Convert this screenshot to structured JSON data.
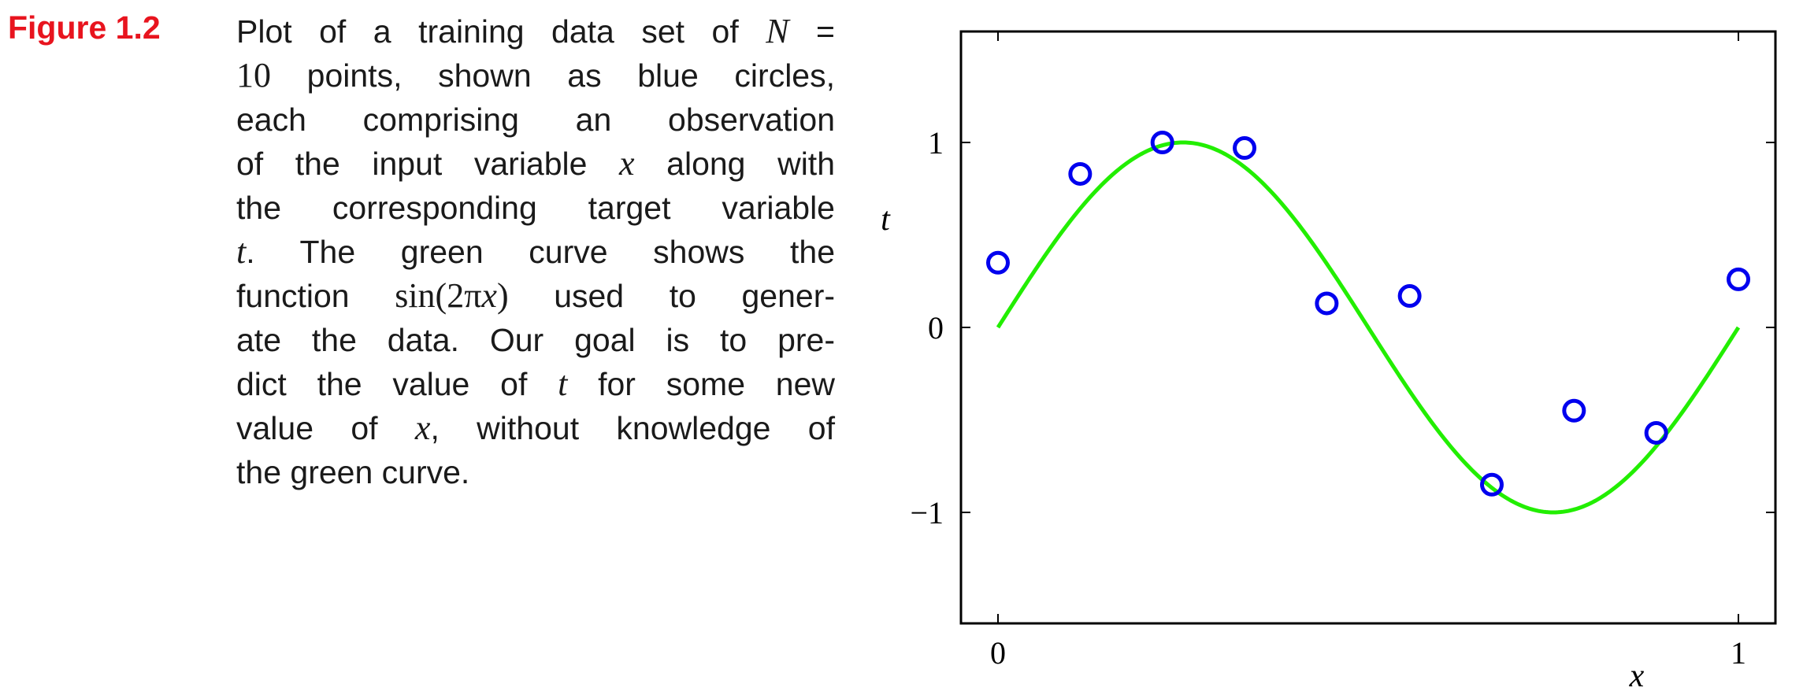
{
  "figure_label": "Figure 1.2",
  "caption": {
    "lines": [
      [
        {
          "t": "Plot of a training data set of "
        },
        {
          "t": "N",
          "m": 1
        },
        {
          "t": " ="
        }
      ],
      [
        {
          "t": "10",
          "r": 1
        },
        {
          "t": " points, shown as blue circles,"
        }
      ],
      [
        {
          "t": "each comprising an observation"
        }
      ],
      [
        {
          "t": "of the input variable "
        },
        {
          "t": "x",
          "m": 1
        },
        {
          "t": " along with"
        }
      ],
      [
        {
          "t": "the corresponding target variable"
        }
      ],
      [
        {
          "t": "t",
          "m": 1
        },
        {
          "t": ".  The green curve shows the"
        }
      ],
      [
        {
          "t": "function "
        },
        {
          "t": "sin(2π",
          "r": 1
        },
        {
          "t": "x",
          "m": 1
        },
        {
          "t": ")",
          "r": 1
        },
        {
          "t": " used to gener-"
        }
      ],
      [
        {
          "t": "ate the data.  Our goal is to pre-"
        }
      ],
      [
        {
          "t": "dict the value of "
        },
        {
          "t": "t",
          "m": 1
        },
        {
          "t": " for some new"
        }
      ],
      [
        {
          "t": "value of "
        },
        {
          "t": "x",
          "m": 1
        },
        {
          "t": ", without knowledge of"
        }
      ],
      [
        {
          "t": "the green curve."
        }
      ]
    ]
  },
  "chart_data": {
    "type": "scatter",
    "xlabel": "x",
    "ylabel": "t",
    "xlim": [
      -0.05,
      1.05
    ],
    "ylim": [
      -1.6,
      1.6
    ],
    "xticks": [
      0,
      1
    ],
    "xtick_labels": [
      "0",
      "1"
    ],
    "yticks": [
      -1,
      0,
      1
    ],
    "ytick_labels": [
      "−1",
      "0",
      "1"
    ],
    "grid": false,
    "series": [
      {
        "kind": "points",
        "marker": "open-circle",
        "color": "#0000ee",
        "x": [
          0.0,
          0.111,
          0.222,
          0.333,
          0.444,
          0.556,
          0.667,
          0.778,
          0.889,
          1.0
        ],
        "y": [
          0.35,
          0.83,
          1.0,
          0.97,
          0.13,
          0.17,
          -0.85,
          -0.45,
          -0.57,
          0.26
        ]
      },
      {
        "kind": "function",
        "function": "sin(2πx)",
        "color": "#22ee00",
        "x_range": [
          0,
          1
        ]
      }
    ]
  }
}
